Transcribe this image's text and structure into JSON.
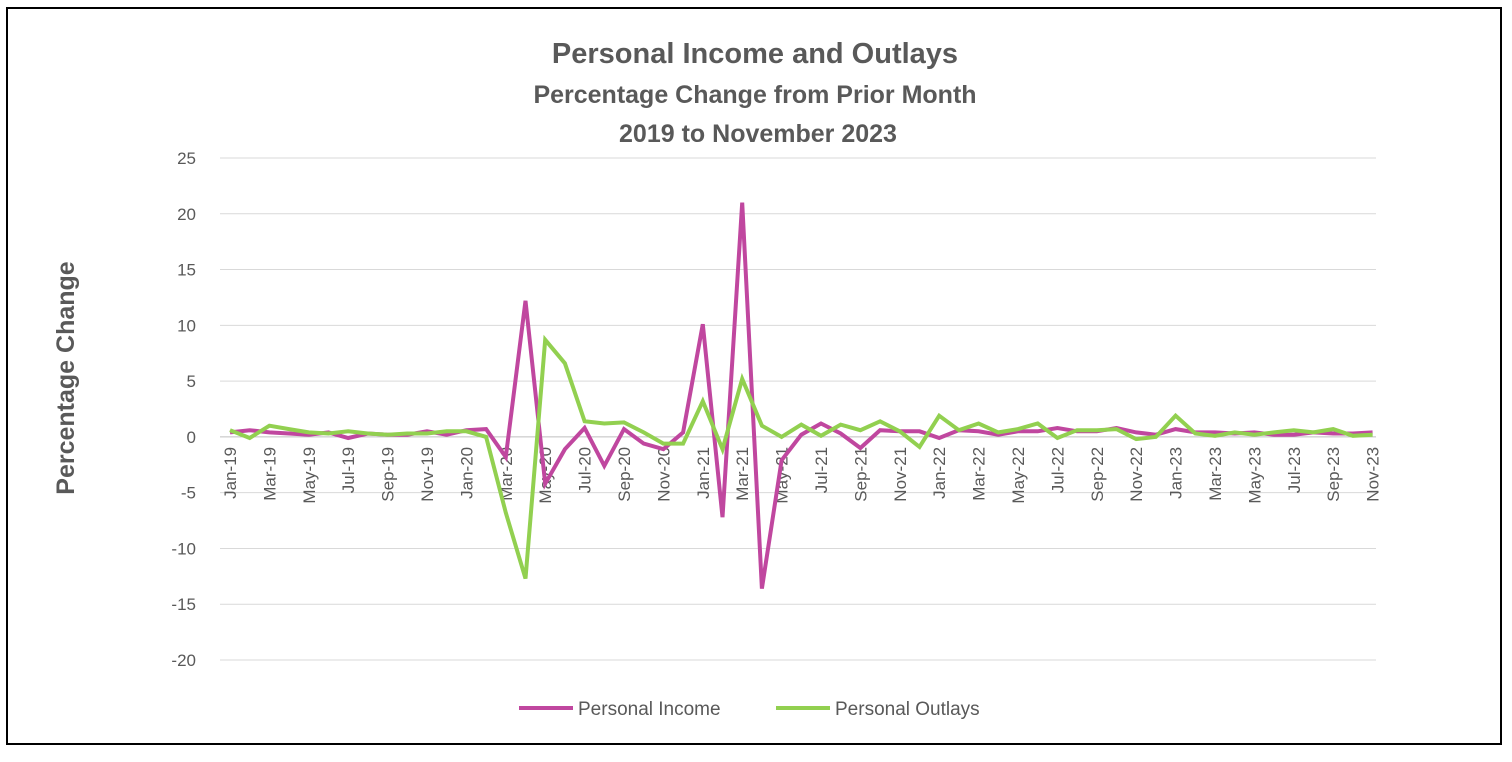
{
  "chart_data": {
    "type": "line",
    "title": "Personal Income and Outlays",
    "subtitle_lines": [
      "Percentage Change from Prior Month",
      "2019 to November 2023"
    ],
    "ylabel": "Percentage Change",
    "xlabel": "",
    "ylim": [
      -20,
      25
    ],
    "yticks": [
      -20,
      -15,
      -10,
      -5,
      0,
      5,
      10,
      15,
      20,
      25
    ],
    "grid": true,
    "legend_position": "bottom",
    "x": [
      "Jan-19",
      "Feb-19",
      "Mar-19",
      "Apr-19",
      "May-19",
      "Jun-19",
      "Jul-19",
      "Aug-19",
      "Sep-19",
      "Oct-19",
      "Nov-19",
      "Dec-19",
      "Jan-20",
      "Feb-20",
      "Mar-20",
      "Apr-20",
      "May-20",
      "Jun-20",
      "Jul-20",
      "Aug-20",
      "Sep-20",
      "Oct-20",
      "Nov-20",
      "Dec-20",
      "Jan-21",
      "Feb-21",
      "Mar-21",
      "Apr-21",
      "May-21",
      "Jun-21",
      "Jul-21",
      "Aug-21",
      "Sep-21",
      "Oct-21",
      "Nov-21",
      "Dec-21",
      "Jan-22",
      "Feb-22",
      "Mar-22",
      "Apr-22",
      "May-22",
      "Jun-22",
      "Jul-22",
      "Aug-22",
      "Sep-22",
      "Oct-22",
      "Nov-22",
      "Dec-22",
      "Jan-23",
      "Feb-23",
      "Mar-23",
      "Apr-23",
      "May-23",
      "Jun-23",
      "Jul-23",
      "Aug-23",
      "Sep-23",
      "Oct-23",
      "Nov-23"
    ],
    "x_tick_labels": [
      "Jan-19",
      "Mar-19",
      "May-19",
      "Jul-19",
      "Sep-19",
      "Nov-19",
      "Jan-20",
      "Mar-20",
      "May-20",
      "Jul-20",
      "Sep-20",
      "Nov-20",
      "Jan-21",
      "Mar-21",
      "May-21",
      "Jul-21",
      "Sep-21",
      "Nov-21",
      "Jan-22",
      "Mar-22",
      "May-22",
      "Jul-22",
      "Sep-22",
      "Nov-22",
      "Jan-23",
      "Mar-23",
      "May-23",
      "Jul-23",
      "Sep-23",
      "Nov-23"
    ],
    "series": [
      {
        "name": "Personal Income",
        "color": "#C0479F",
        "values": [
          0.4,
          0.6,
          0.4,
          0.3,
          0.2,
          0.4,
          -0.1,
          0.3,
          0.2,
          0.2,
          0.5,
          0.2,
          0.6,
          0.7,
          -1.8,
          12.2,
          -4.2,
          -1.1,
          0.8,
          -2.6,
          0.7,
          -0.6,
          -1.1,
          0.4,
          10.1,
          -7.2,
          21.0,
          -13.6,
          -2.1,
          0.2,
          1.2,
          0.3,
          -1.0,
          0.6,
          0.5,
          0.5,
          -0.1,
          0.6,
          0.5,
          0.2,
          0.5,
          0.5,
          0.8,
          0.5,
          0.5,
          0.8,
          0.4,
          0.2,
          0.7,
          0.4,
          0.4,
          0.3,
          0.4,
          0.2,
          0.2,
          0.4,
          0.3,
          0.3,
          0.4
        ]
      },
      {
        "name": "Personal Outlays",
        "color": "#92D050",
        "values": [
          0.6,
          -0.1,
          1.0,
          0.7,
          0.4,
          0.3,
          0.5,
          0.3,
          0.2,
          0.3,
          0.3,
          0.5,
          0.5,
          0.0,
          -6.8,
          -12.7,
          8.7,
          6.6,
          1.4,
          1.2,
          1.3,
          0.4,
          -0.6,
          -0.6,
          3.2,
          -1.1,
          5.2,
          1.0,
          0.0,
          1.1,
          0.1,
          1.1,
          0.6,
          1.4,
          0.5,
          -0.9,
          1.9,
          0.6,
          1.2,
          0.4,
          0.7,
          1.2,
          -0.1,
          0.6,
          0.6,
          0.7,
          -0.2,
          0.0,
          1.9,
          0.3,
          0.1,
          0.4,
          0.2,
          0.4,
          0.6,
          0.4,
          0.7,
          0.1,
          0.2
        ]
      }
    ]
  }
}
